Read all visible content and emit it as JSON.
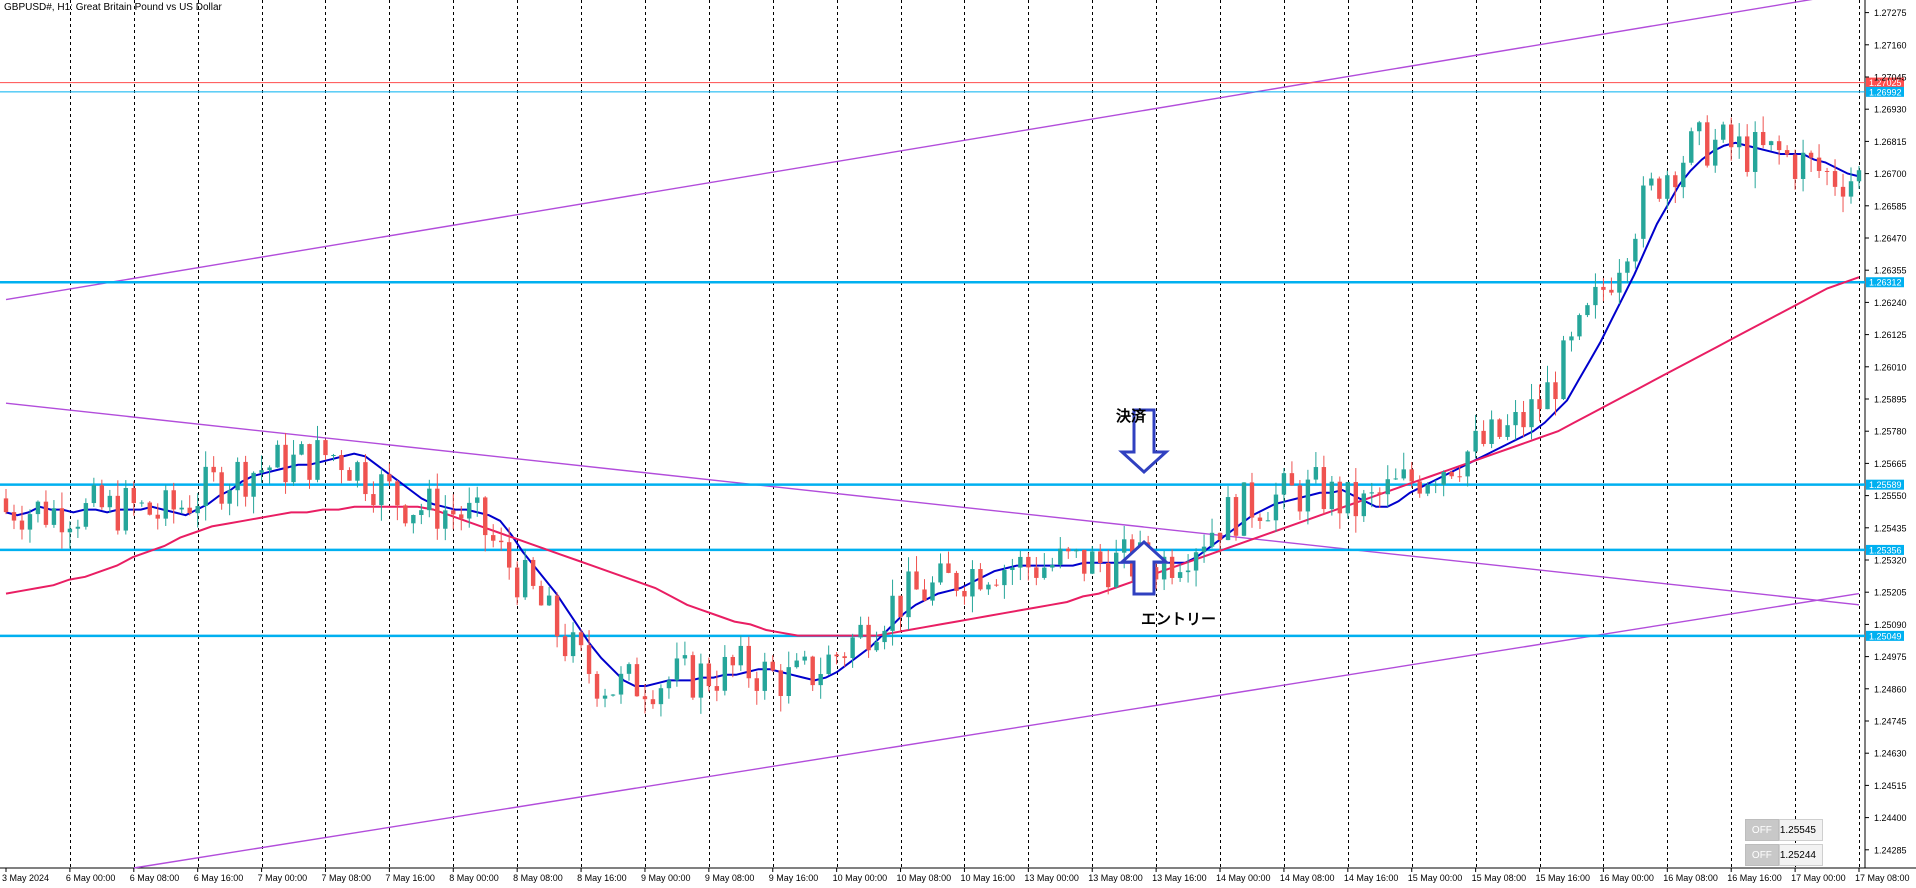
{
  "header": {
    "symbol_info": "GBPUSD#, H1:  Great Britain Pound vs US Dollar"
  },
  "annotations": {
    "exit_label": "決済",
    "entry_label": "エントリー"
  },
  "trade_panel": [
    {
      "off_label": "OFF",
      "value": "1.25545"
    },
    {
      "off_label": "OFF",
      "value": "1.25244"
    }
  ],
  "colors": {
    "background": "#ffffff",
    "bull": "#26a69a",
    "bear": "#ef5350",
    "ma_fast": "#0000cc",
    "ma_slow": "#e91e63",
    "trendline": "#b24ddb",
    "level": "#00b0f0",
    "red_level": "#ff4d4d",
    "grid": "#000000",
    "arrow": "#3040c0"
  },
  "chart_data": {
    "type": "candlestick",
    "title": "GBPUSD#, H1:  Great Britain Pound vs US Dollar",
    "symbol": "GBPUSD#",
    "timeframe": "H1",
    "ylim": [
      1.2422,
      1.2732
    ],
    "y_ticks": [
      "1.27275",
      "1.27160",
      "1.27045",
      "1.26930",
      "1.26815",
      "1.26700",
      "1.26585",
      "1.26470",
      "1.26355",
      "1.26240",
      "1.26125",
      "1.26010",
      "1.25895",
      "1.25780",
      "1.25665",
      "1.25550",
      "1.25435",
      "1.25320",
      "1.25205",
      "1.25090",
      "1.24975",
      "1.24860",
      "1.24745",
      "1.24630",
      "1.24515",
      "1.24400",
      "1.24285"
    ],
    "x_ticks": [
      "3 May 2024",
      "6 May 00:00",
      "6 May 08:00",
      "6 May 16:00",
      "7 May 00:00",
      "7 May 08:00",
      "7 May 16:00",
      "8 May 00:00",
      "8 May 08:00",
      "8 May 16:00",
      "9 May 00:00",
      "9 May 08:00",
      "9 May 16:00",
      "10 May 00:00",
      "10 May 08:00",
      "10 May 16:00",
      "13 May 00:00",
      "13 May 08:00",
      "13 May 16:00",
      "14 May 00:00",
      "14 May 08:00",
      "14 May 16:00",
      "15 May 00:00",
      "15 May 08:00",
      "15 May 16:00",
      "16 May 00:00",
      "16 May 08:00",
      "16 May 16:00",
      "17 May 00:00",
      "17 May 08:00"
    ],
    "grid": "vertical dashed",
    "horizontal_levels": [
      {
        "price": "1.27025",
        "color": "#ff4d4d"
      },
      {
        "price": "1.26992",
        "color": "#00b0f0"
      },
      {
        "price": "1.26312",
        "color": "#00b0f0"
      },
      {
        "price": "1.25589",
        "color": "#00b0f0"
      },
      {
        "price": "1.25356",
        "color": "#00b0f0"
      },
      {
        "price": "1.25049",
        "color": "#00b0f0"
      }
    ],
    "trendlines": [
      {
        "from": [
          "3 May 2024",
          1.2625
        ],
        "to": [
          "17 May 08:00",
          1.2735
        ]
      },
      {
        "from": [
          "3 May 2024",
          1.2588
        ],
        "to": [
          "17 May 08:00",
          1.2516
        ]
      },
      {
        "from": [
          "6 May 08:00",
          1.2422
        ],
        "to": [
          "17 May 08:00",
          1.252
        ]
      }
    ],
    "moving_averages": [
      {
        "period_hint": "fast",
        "color": "#0000cc",
        "values": [
          1.2549,
          1.2548,
          1.2549,
          1.2551,
          1.255,
          1.255,
          1.2549,
          1.255,
          1.255,
          1.2549,
          1.255,
          1.255,
          1.255,
          1.2551,
          1.255,
          1.2549,
          1.2548,
          1.255,
          1.2552,
          1.2555,
          1.2557,
          1.256,
          1.2562,
          1.2563,
          1.2564,
          1.2565,
          1.2566,
          1.2566,
          1.2567,
          1.2568,
          1.2569,
          1.257,
          1.2569,
          1.2566,
          1.2563,
          1.256,
          1.2557,
          1.2554,
          1.2552,
          1.2551,
          1.255,
          1.255,
          1.2549,
          1.2548,
          1.2546,
          1.2541,
          1.2535,
          1.253,
          1.2525,
          1.252,
          1.2514,
          1.2508,
          1.2502,
          1.2497,
          1.2493,
          1.2489,
          1.2487,
          1.2487,
          1.2488,
          1.2489,
          1.2489,
          1.2489,
          1.249,
          1.249,
          1.2491,
          1.2491,
          1.2492,
          1.2493,
          1.2493,
          1.2492,
          1.2491,
          1.249,
          1.2489,
          1.249,
          1.2492,
          1.2495,
          1.2498,
          1.2501,
          1.2505,
          1.2509,
          1.2513,
          1.2516,
          1.2518,
          1.252,
          1.2521,
          1.2522,
          1.2524,
          1.2526,
          1.2528,
          1.2529,
          1.253,
          1.253,
          1.253,
          1.253,
          1.253,
          1.253,
          1.2531,
          1.2531,
          1.2531,
          1.2531,
          1.2531,
          1.2531,
          1.2531,
          1.2531,
          1.2531,
          1.2531,
          1.2533,
          1.2536,
          1.2539,
          1.2542,
          1.2545,
          1.2548,
          1.255,
          1.2552,
          1.2553,
          1.2554,
          1.2555,
          1.2556,
          1.2556,
          1.2557,
          1.2555,
          1.2553,
          1.2551,
          1.2551,
          1.2553,
          1.2556,
          1.2558,
          1.256,
          1.2562,
          1.2564,
          1.2566,
          1.2568,
          1.257,
          1.2572,
          1.2574,
          1.2576,
          1.2578,
          1.2581,
          1.2585,
          1.2589,
          1.2596,
          1.2603,
          1.261,
          1.2618,
          1.2626,
          1.2634,
          1.2643,
          1.2652,
          1.2659,
          1.2666,
          1.2671,
          1.2675,
          1.2678,
          1.268,
          1.2681,
          1.268,
          1.2679,
          1.2678,
          1.2677,
          1.2677,
          1.2677,
          1.2675,
          1.2674,
          1.2672,
          1.267,
          1.2669
        ]
      },
      {
        "period_hint": "slow",
        "color": "#e91e63",
        "values": [
          1.252,
          1.2521,
          1.2522,
          1.2523,
          1.2525,
          1.2526,
          1.2528,
          1.253,
          1.2533,
          1.2535,
          1.2537,
          1.254,
          1.2542,
          1.2544,
          1.2545,
          1.2546,
          1.2547,
          1.2548,
          1.2549,
          1.2549,
          1.255,
          1.255,
          1.2551,
          1.2551,
          1.2551,
          1.2551,
          1.2551,
          1.255,
          1.2548,
          1.2546,
          1.2544,
          1.2542,
          1.254,
          1.2538,
          1.2536,
          1.2534,
          1.2532,
          1.253,
          1.2528,
          1.2526,
          1.2524,
          1.2522,
          1.2519,
          1.2516,
          1.2514,
          1.2512,
          1.251,
          1.2509,
          1.2507,
          1.2506,
          1.2505,
          1.2505,
          1.2505,
          1.2505,
          1.2505,
          1.2505,
          1.2506,
          1.2507,
          1.2508,
          1.2509,
          1.251,
          1.2511,
          1.2512,
          1.2513,
          1.2514,
          1.2515,
          1.2516,
          1.2517,
          1.2519,
          1.252,
          1.2522,
          1.2524,
          1.2526,
          1.2528,
          1.253,
          1.2532,
          1.2534,
          1.2536,
          1.2538,
          1.254,
          1.2542,
          1.2544,
          1.2546,
          1.2548,
          1.255,
          1.2552,
          1.2554,
          1.2556,
          1.2558,
          1.256,
          1.2562,
          1.2564,
          1.2566,
          1.2568,
          1.257,
          1.2572,
          1.2574,
          1.2576,
          1.2578,
          1.2581,
          1.2584,
          1.2587,
          1.259,
          1.2593,
          1.2596,
          1.2599,
          1.2602,
          1.2605,
          1.2608,
          1.2611,
          1.2614,
          1.2617,
          1.262,
          1.2623,
          1.2626,
          1.2629,
          1.2631,
          1.2633
        ]
      }
    ]
  }
}
